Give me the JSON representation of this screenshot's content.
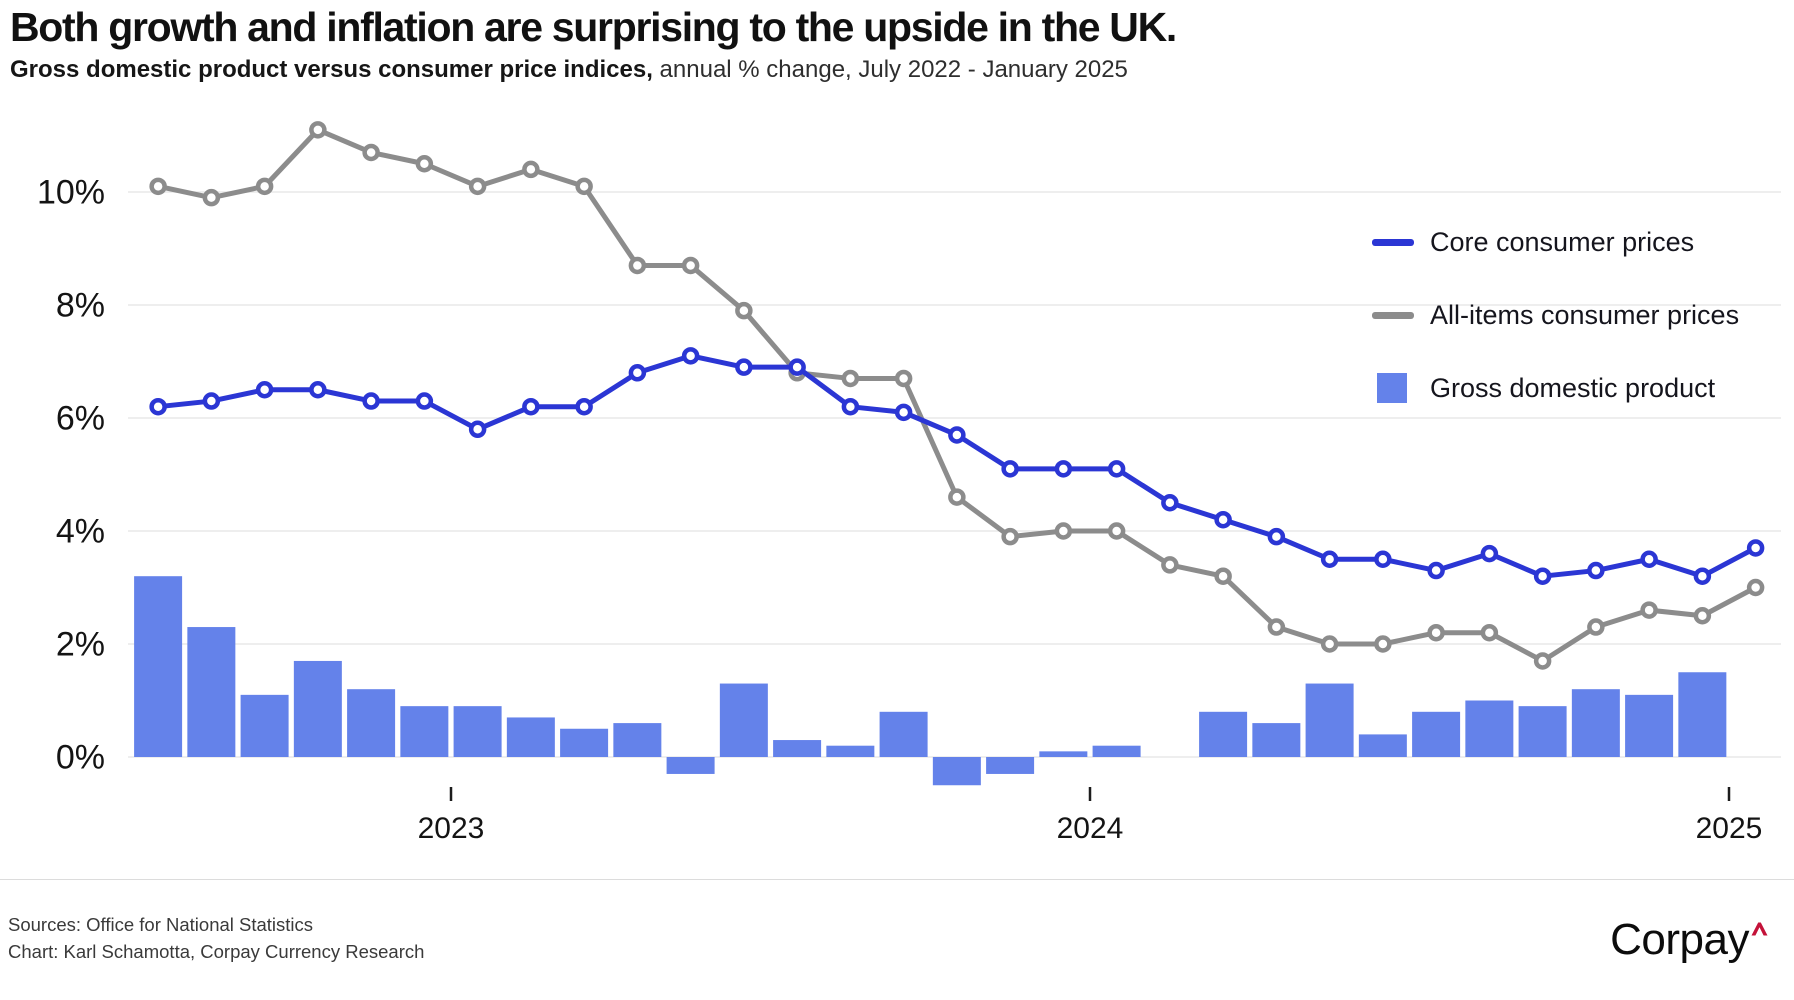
{
  "header": {
    "title": "Both growth and inflation are surprising to the upside in the UK.",
    "subtitle_bold": "Gross domestic product versus consumer price indices,",
    "subtitle_rest": " annual % change, July 2022 - January 2025"
  },
  "legend": {
    "items": [
      {
        "label": "Core consumer prices",
        "swatch": "line",
        "color": "#2b36d4"
      },
      {
        "label": "All-items consumer prices",
        "swatch": "line",
        "color": "#8c8c8c"
      },
      {
        "label": "Gross domestic product",
        "swatch": "square",
        "color": "#6482ea"
      }
    ]
  },
  "footer": {
    "sources_line": "Sources: Office for National Statistics",
    "chart_line": "Chart: Karl Schamotta, Corpay Currency Research",
    "logo_text": "Corpay",
    "logo_caret_color": "#c41239"
  },
  "chart_data": {
    "type": "combo",
    "x": [
      "Jul 2022",
      "Aug 2022",
      "Sep 2022",
      "Oct 2022",
      "Nov 2022",
      "Dec 2022",
      "Jan 2023",
      "Feb 2023",
      "Mar 2023",
      "Apr 2023",
      "May 2023",
      "Jun 2023",
      "Jul 2023",
      "Aug 2023",
      "Sep 2023",
      "Oct 2023",
      "Nov 2023",
      "Dec 2023",
      "Jan 2024",
      "Feb 2024",
      "Mar 2024",
      "Apr 2024",
      "May 2024",
      "Jun 2024",
      "Jul 2024",
      "Aug 2024",
      "Sep 2024",
      "Oct 2024",
      "Nov 2024",
      "Dec 2024",
      "Jan 2025"
    ],
    "series": [
      {
        "name": "Core consumer prices",
        "type": "line",
        "color": "#2b36d4",
        "values": [
          6.2,
          6.3,
          6.5,
          6.5,
          6.3,
          6.3,
          5.8,
          6.2,
          6.2,
          6.8,
          7.1,
          6.9,
          6.9,
          6.2,
          6.1,
          5.7,
          5.1,
          5.1,
          5.1,
          4.5,
          4.2,
          3.9,
          3.5,
          3.5,
          3.3,
          3.6,
          3.2,
          3.3,
          3.5,
          3.2,
          3.7
        ]
      },
      {
        "name": "All-items consumer prices",
        "type": "line",
        "color": "#8c8c8c",
        "values": [
          10.1,
          9.9,
          10.1,
          11.1,
          10.7,
          10.5,
          10.1,
          10.4,
          10.1,
          8.7,
          8.7,
          7.9,
          6.8,
          6.7,
          6.7,
          4.6,
          3.9,
          4.0,
          4.0,
          3.4,
          3.2,
          2.3,
          2.0,
          2.0,
          2.2,
          2.2,
          1.7,
          2.3,
          2.6,
          2.5,
          3.0
        ]
      },
      {
        "name": "Gross domestic product",
        "type": "bar",
        "color": "#6482ea",
        "values": [
          3.2,
          2.3,
          1.1,
          1.7,
          1.2,
          0.9,
          0.9,
          0.7,
          0.5,
          0.6,
          -0.3,
          1.3,
          0.3,
          0.2,
          0.8,
          -0.5,
          -0.3,
          0.1,
          0.2,
          0.0,
          0.8,
          0.6,
          1.3,
          0.4,
          0.8,
          1.0,
          0.9,
          1.2,
          1.1,
          1.5,
          null
        ]
      }
    ],
    "yticks": [
      {
        "value": 0,
        "label": "0%"
      },
      {
        "value": 2,
        "label": "2%"
      },
      {
        "value": 4,
        "label": "4%"
      },
      {
        "value": 6,
        "label": "6%"
      },
      {
        "value": 8,
        "label": "8%"
      },
      {
        "value": 10,
        "label": "10%"
      }
    ],
    "xticks": [
      {
        "label": "2023",
        "index": 6
      },
      {
        "label": "2024",
        "index": 18
      },
      {
        "label": "2025",
        "index": 30
      }
    ],
    "ylim": [
      -0.7,
      11.6
    ],
    "grid": true,
    "gridline_color": "#e9e9e9",
    "axis_text_color": "#141414",
    "legend_position": "upper-right"
  }
}
